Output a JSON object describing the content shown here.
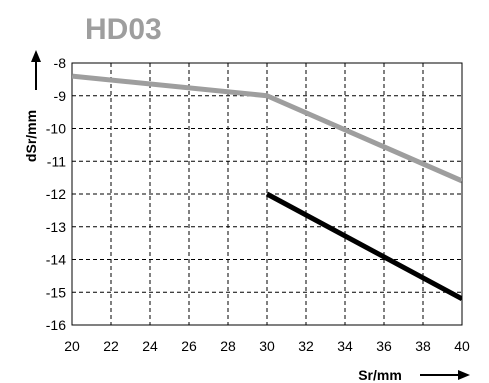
{
  "chart_data": {
    "type": "line",
    "title": "HD03",
    "xlabel": "Sr/mm",
    "ylabel": "dSr/mm",
    "xlim": [
      20,
      40
    ],
    "ylim": [
      -16,
      -8
    ],
    "x_ticks": [
      "20",
      "22",
      "24",
      "26",
      "28",
      "30",
      "32",
      "34",
      "36",
      "38",
      "40"
    ],
    "y_ticks": [
      "-8",
      "-9",
      "-10",
      "-11",
      "-12",
      "-13",
      "-14",
      "-15",
      "-16"
    ],
    "grid": true,
    "series": [
      {
        "color": "#9e9e9e",
        "points": [
          [
            20,
            -8.4
          ],
          [
            30,
            -9.0
          ],
          [
            40,
            -11.6
          ]
        ]
      },
      {
        "color": "#000000",
        "points": [
          [
            30,
            -12.0
          ],
          [
            40,
            -15.2
          ]
        ]
      }
    ]
  }
}
